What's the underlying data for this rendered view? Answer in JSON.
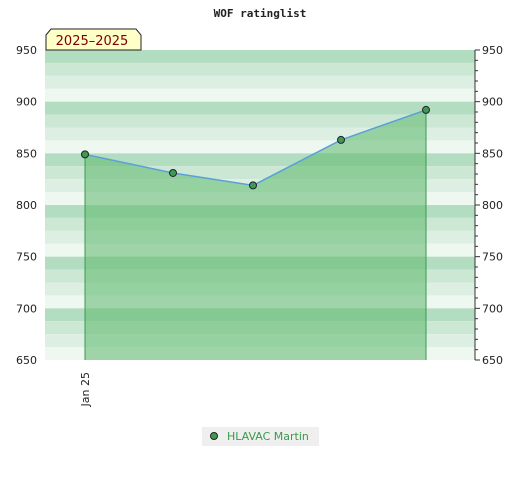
{
  "chart_data": {
    "type": "line",
    "title": "WOF ratinglist",
    "badge": "2025–2025",
    "xlabel": "",
    "ylabel": "",
    "ylim": [
      650,
      950
    ],
    "yticks": [
      650,
      700,
      750,
      800,
      850,
      900,
      950
    ],
    "x_tick_labels": [
      {
        "index": 0,
        "label": "Jan 25"
      }
    ],
    "legend_position": "bottom-center",
    "series": [
      {
        "name": "HLAVAC Martin",
        "values": [
          849,
          831,
          819,
          863,
          892
        ],
        "line_color": "#5aa0d8",
        "marker_color": "#3f9a50",
        "fill_color": "#5cb86c"
      }
    ],
    "colors": {
      "band_dark": "#b3ddc0",
      "band_mid": "#cce8d4",
      "band_light": "#dcefe2",
      "band_lightest": "#eef7f0",
      "badge_bg": "#ffffc8"
    }
  }
}
